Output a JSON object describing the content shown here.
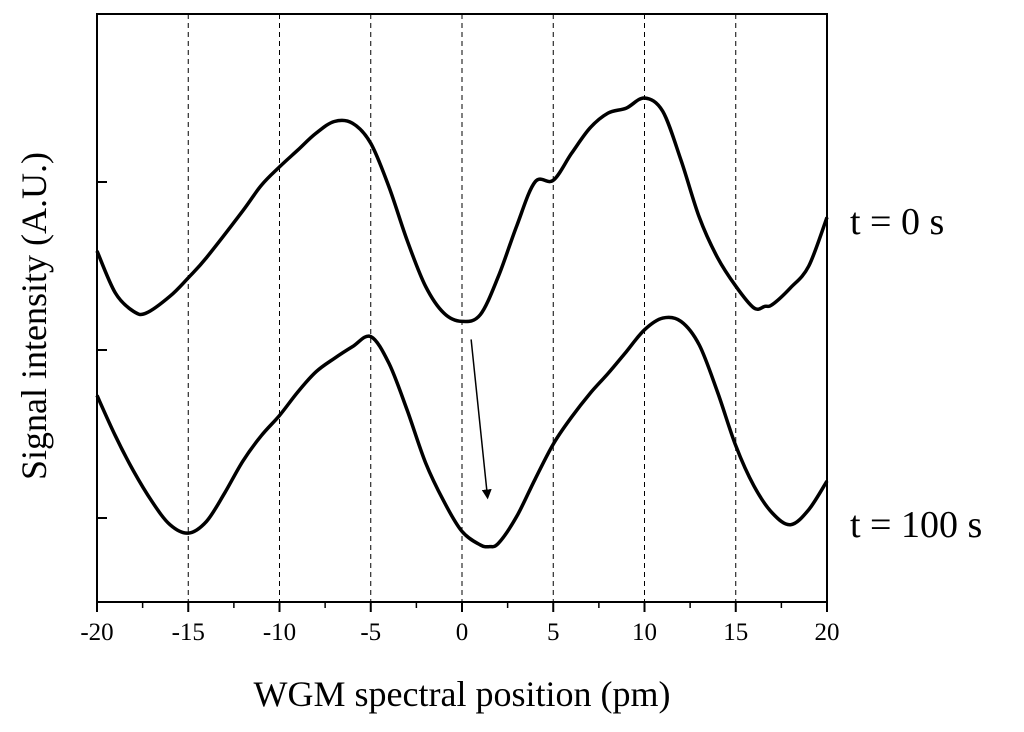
{
  "chart_data": {
    "type": "line",
    "xlabel": "WGM spectral position (pm)",
    "ylabel": "Signal intensity (A.U.)",
    "xlim": [
      -20,
      20
    ],
    "ylim": [
      0,
      3.5
    ],
    "x_ticks": [
      -20,
      -15,
      -10,
      -5,
      0,
      5,
      10,
      15,
      20
    ],
    "x_tick_labels": [
      "-20",
      "-15",
      "-10",
      "-5",
      "0",
      "5",
      "10",
      "15",
      "20"
    ],
    "y_ticks": [
      0.5,
      1.5,
      2.5
    ],
    "y_tick_labels": [
      "",
      "",
      ""
    ],
    "vertical_dashed_gridlines_at": [
      -15,
      -10,
      -5,
      0,
      5,
      10,
      15
    ],
    "legend": "none",
    "series": [
      {
        "name": "t = 0 s",
        "x": [
          -20,
          -19,
          -18,
          -17.3,
          -16,
          -15,
          -14,
          -12,
          -11,
          -10,
          -9,
          -8,
          -7,
          -6,
          -5,
          -4,
          -3,
          -2,
          -1,
          0,
          1,
          2,
          3,
          4,
          5,
          6,
          7,
          8,
          9,
          10,
          11,
          12,
          13,
          14,
          15,
          16,
          16.6,
          17,
          18,
          19,
          20
        ],
        "values": [
          2.09,
          1.84,
          1.73,
          1.72,
          1.82,
          1.93,
          2.05,
          2.33,
          2.48,
          2.59,
          2.69,
          2.79,
          2.86,
          2.85,
          2.73,
          2.47,
          2.15,
          1.88,
          1.72,
          1.67,
          1.71,
          1.94,
          2.24,
          2.5,
          2.51,
          2.67,
          2.82,
          2.91,
          2.94,
          3.0,
          2.92,
          2.63,
          2.29,
          2.05,
          1.88,
          1.75,
          1.76,
          1.77,
          1.87,
          2.0,
          2.29
        ]
      },
      {
        "name": "t = 100 s",
        "x": [
          -20,
          -19,
          -18,
          -17,
          -16,
          -15,
          -14,
          -13,
          -12,
          -11,
          -10,
          -9,
          -8,
          -7,
          -6,
          -5,
          -4,
          -3,
          -2,
          -1,
          0,
          1,
          1.5,
          2,
          3,
          4,
          5,
          6,
          7,
          8,
          9,
          10,
          11,
          12,
          13,
          14,
          15,
          16,
          17,
          18,
          19,
          20
        ],
        "values": [
          1.23,
          0.99,
          0.78,
          0.6,
          0.46,
          0.41,
          0.48,
          0.65,
          0.84,
          0.99,
          1.11,
          1.25,
          1.37,
          1.45,
          1.52,
          1.58,
          1.42,
          1.14,
          0.83,
          0.6,
          0.42,
          0.34,
          0.33,
          0.35,
          0.51,
          0.73,
          0.94,
          1.1,
          1.24,
          1.36,
          1.49,
          1.62,
          1.69,
          1.67,
          1.53,
          1.25,
          0.93,
          0.69,
          0.53,
          0.46,
          0.55,
          0.72
        ]
      }
    ],
    "annotations": [
      {
        "type": "arrow",
        "from": [
          0.5,
          1.67
        ],
        "to": [
          1.4,
          0.42
        ]
      }
    ]
  }
}
